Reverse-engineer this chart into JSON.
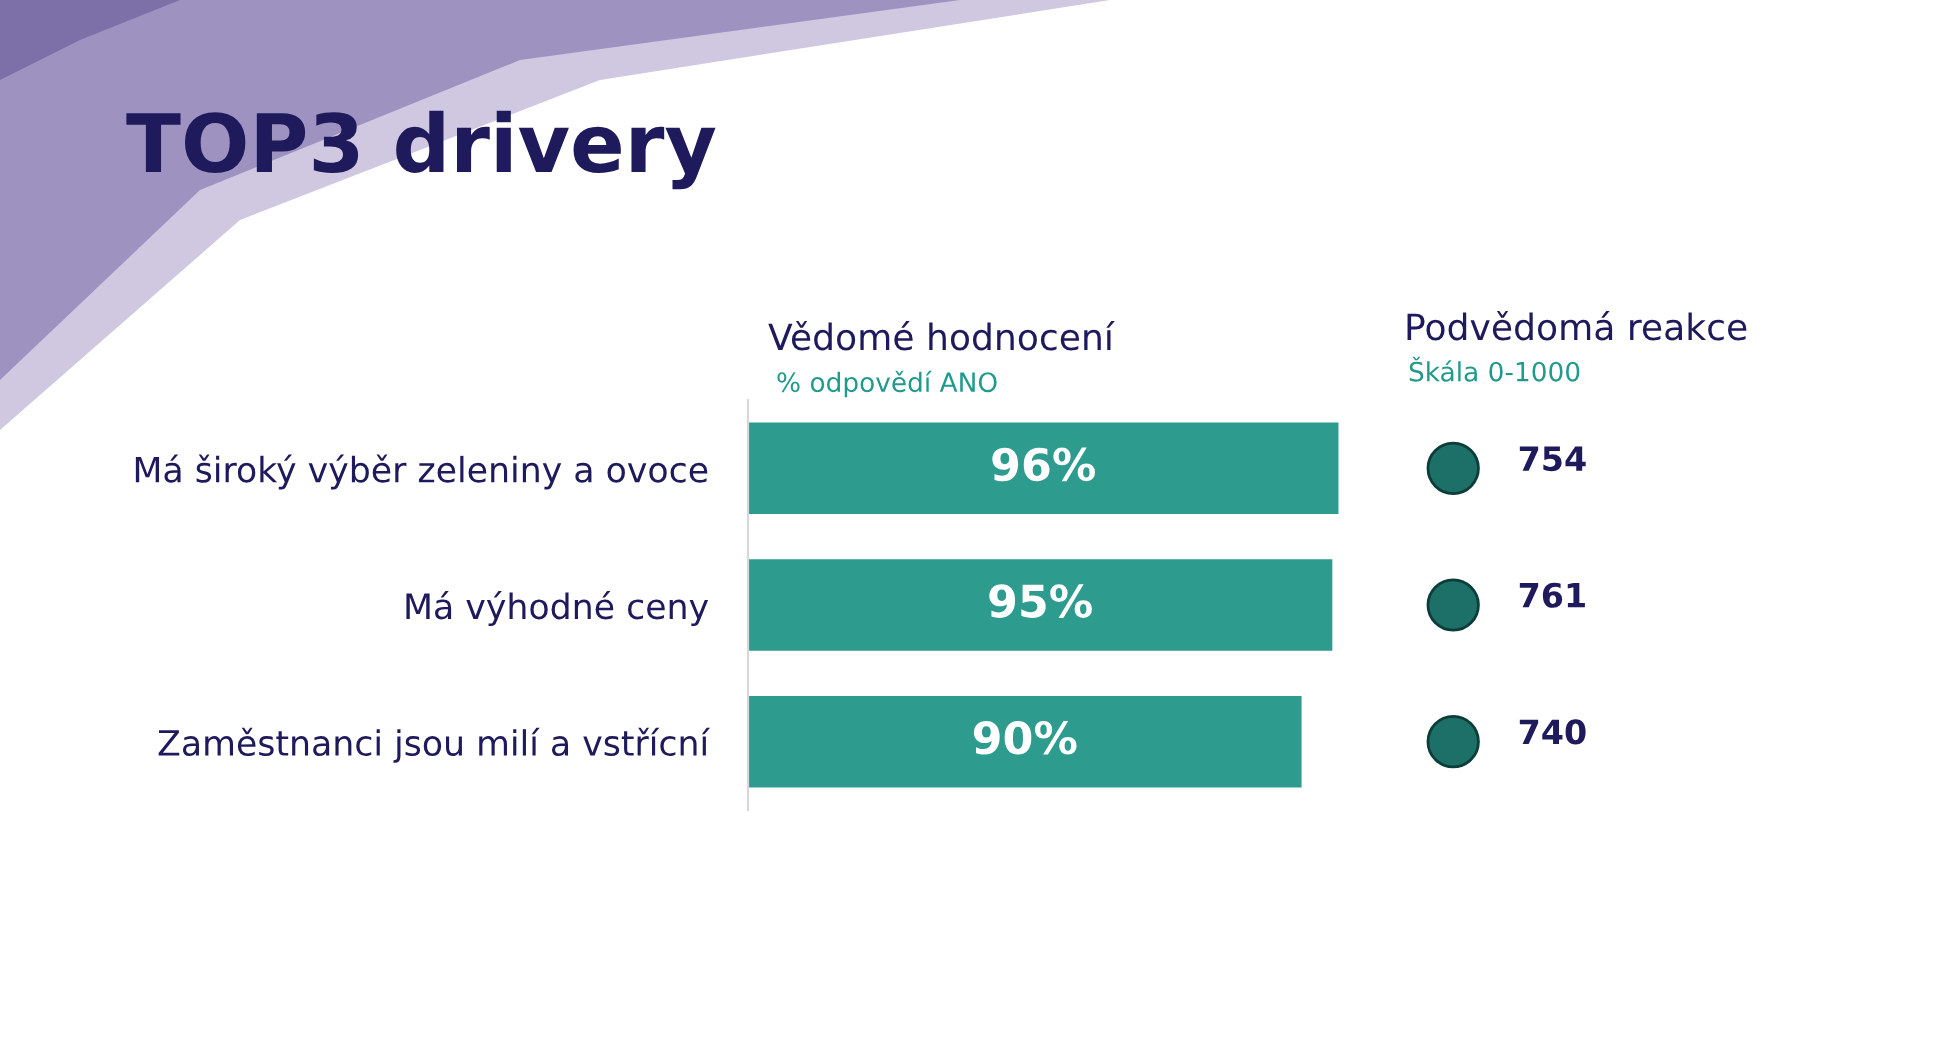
{
  "chart_data": [
    {
      "type": "bar",
      "title": "TOP3 drivery",
      "subtitle": "Vědomé hodnocení",
      "xlabel": "% odpovědí ANO",
      "orientation": "horizontal",
      "categories": [
        "Má široký výběr zeleniny a ovoce",
        "Má výhodné ceny",
        "Zaměstnanci jsou milí a vstřícní"
      ],
      "values": [
        96,
        95,
        90
      ],
      "value_labels": [
        "96%",
        "95%",
        "90%"
      ],
      "color": "#2e9b8f",
      "tick_labels": "y"
    },
    {
      "type": "other",
      "title": "Podvědomá reakce",
      "xlabel": "Škála 0-1000",
      "categories": [
        null,
        null,
        null
      ],
      "values": [
        754,
        761,
        740
      ],
      "color": "#1d7068",
      "data_labels": true
    }
  ]
}
